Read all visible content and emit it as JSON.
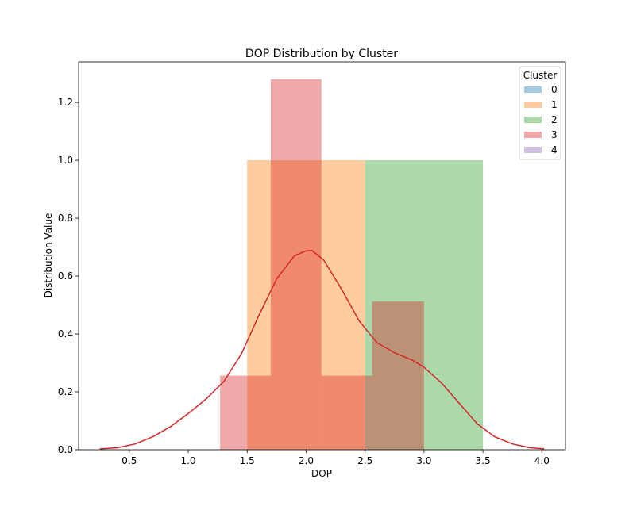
{
  "chart_data": {
    "type": "bar",
    "title": "DOP Distribution by Cluster",
    "xlabel": "DOP",
    "ylabel": "Distribution Value",
    "xlim": [
      0.07,
      4.2
    ],
    "ylim": [
      0,
      1.34
    ],
    "x_ticks": [
      0.5,
      1.0,
      1.5,
      2.0,
      2.5,
      3.0,
      3.5,
      4.0
    ],
    "x_tick_labels": [
      "0.5",
      "1.0",
      "1.5",
      "2.0",
      "2.5",
      "3.0",
      "3.5",
      "4.0"
    ],
    "y_ticks": [
      0.0,
      0.2,
      0.4,
      0.6,
      0.8,
      1.0,
      1.2
    ],
    "y_tick_labels": [
      "0.0",
      "0.2",
      "0.4",
      "0.6",
      "0.8",
      "1.0",
      "1.2"
    ],
    "grid": false,
    "legend": {
      "title": "Cluster",
      "placement": "top-right",
      "entries": [
        "0",
        "1",
        "2",
        "3",
        "4"
      ]
    },
    "series": [
      {
        "name": "0",
        "color": "#1f77b4",
        "bins": []
      },
      {
        "name": "1",
        "color": "#ff7f0e",
        "bins": [
          {
            "x0": 1.5,
            "x1": 2.5,
            "value": 1.0
          }
        ]
      },
      {
        "name": "2",
        "color": "#2ca02c",
        "bins": [
          {
            "x0": 2.5,
            "x1": 3.5,
            "value": 1.0
          }
        ]
      },
      {
        "name": "3",
        "color": "#d62728",
        "bins": [
          {
            "x0": 1.27,
            "x1": 1.7,
            "value": 0.256
          },
          {
            "x0": 1.7,
            "x1": 2.13,
            "value": 1.28
          },
          {
            "x0": 2.13,
            "x1": 2.56,
            "value": 0.256
          },
          {
            "x0": 2.56,
            "x1": 3.0,
            "value": 0.512
          }
        ]
      },
      {
        "name": "4",
        "color": "#9467bd",
        "bins": []
      }
    ],
    "kde": {
      "series": "3",
      "color": "#d62728",
      "x": [
        0.25,
        0.4,
        0.55,
        0.7,
        0.85,
        1.0,
        1.15,
        1.3,
        1.45,
        1.6,
        1.75,
        1.9,
        2.0,
        2.05,
        2.15,
        2.3,
        2.45,
        2.6,
        2.75,
        2.9,
        3.0,
        3.15,
        3.3,
        3.45,
        3.6,
        3.75,
        3.9,
        4.02
      ],
      "y": [
        0.003,
        0.007,
        0.02,
        0.045,
        0.08,
        0.125,
        0.175,
        0.235,
        0.33,
        0.465,
        0.59,
        0.67,
        0.687,
        0.688,
        0.655,
        0.555,
        0.445,
        0.37,
        0.335,
        0.31,
        0.285,
        0.23,
        0.16,
        0.09,
        0.045,
        0.02,
        0.007,
        0.003
      ]
    }
  }
}
